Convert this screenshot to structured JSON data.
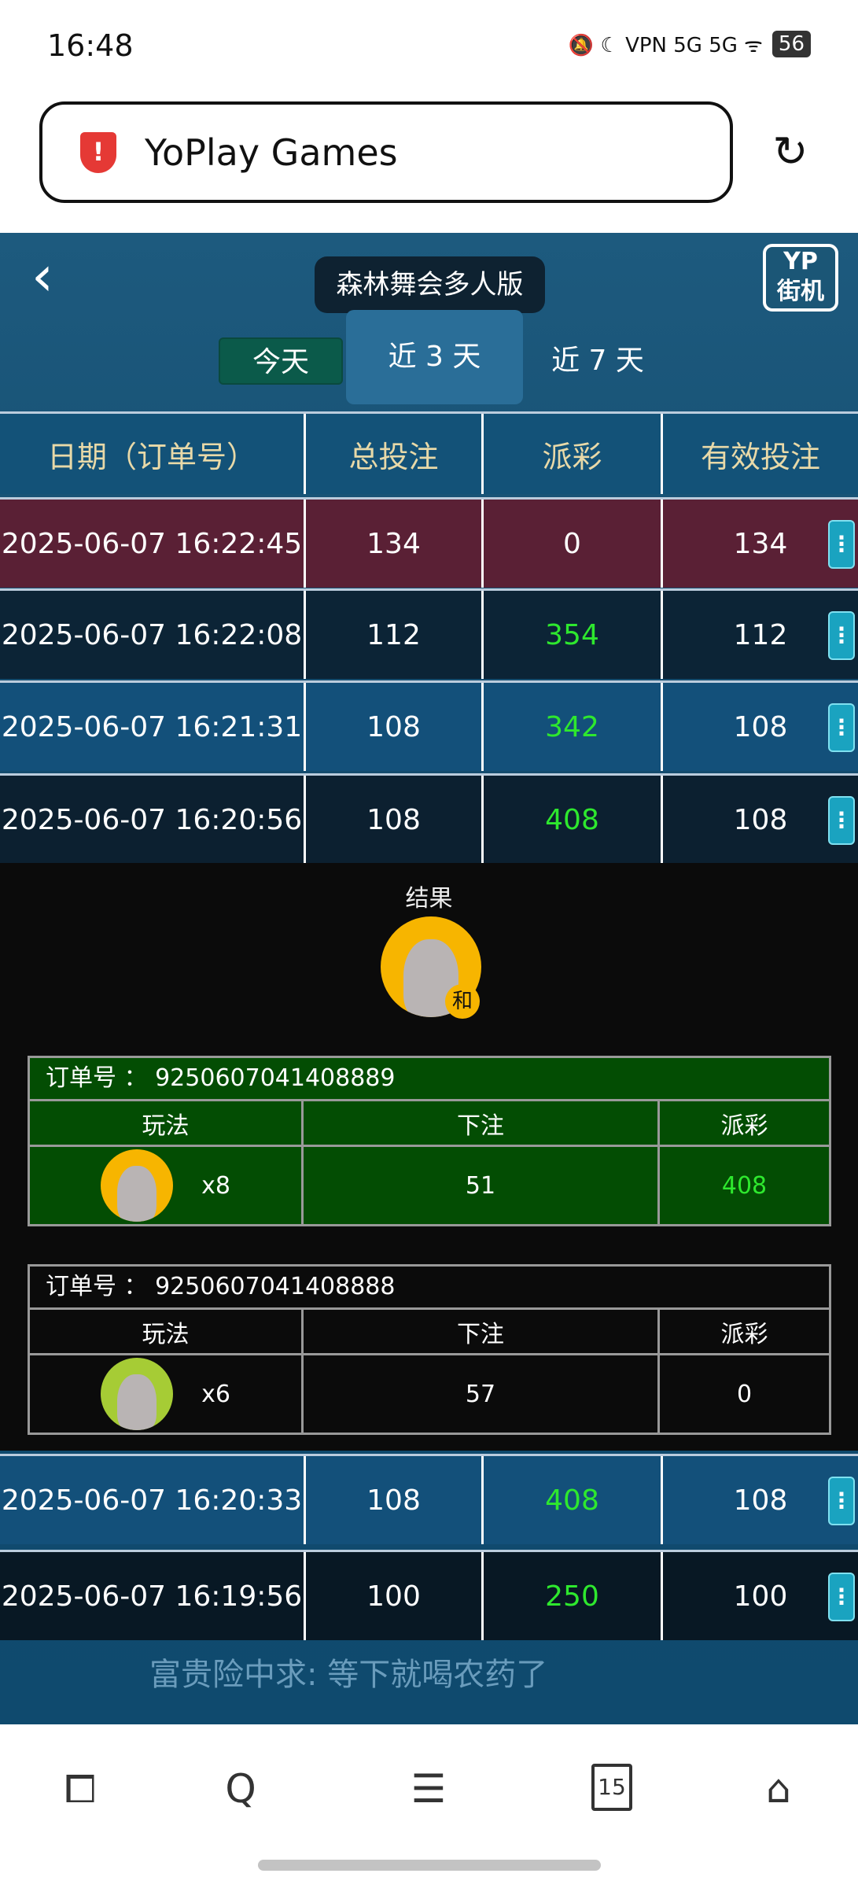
{
  "status_bar": {
    "time": "16:48",
    "indicators": "🔕 ☾ VPN 5G 5G ᯤ",
    "battery": "56"
  },
  "browser": {
    "title": "YoPlay Games",
    "shield_icon": "shield-alert-icon",
    "reload_icon": "reload-icon"
  },
  "game": {
    "title": "森林舞会多人版",
    "logo_top": "YP",
    "logo_bottom": "街机",
    "tabs": [
      {
        "label": "今天"
      },
      {
        "label": "近 3 天"
      },
      {
        "label": "近 7 天"
      }
    ],
    "columns": [
      "日期（订单号）",
      "总投注",
      "派彩",
      "有效投注"
    ],
    "rows": [
      {
        "date": "2025-06-07 16:22:45",
        "total": "134",
        "payout": "0",
        "valid": "134",
        "win": false
      },
      {
        "date": "2025-06-07 16:22:08",
        "total": "112",
        "payout": "354",
        "valid": "112",
        "win": true
      },
      {
        "date": "2025-06-07 16:21:31",
        "total": "108",
        "payout": "342",
        "valid": "108",
        "win": true
      },
      {
        "date": "2025-06-07 16:20:56",
        "total": "108",
        "payout": "408",
        "valid": "108",
        "win": true
      },
      {
        "date": "2025-06-07 16:20:33",
        "total": "108",
        "payout": "408",
        "valid": "108",
        "win": true
      },
      {
        "date": "2025-06-07 16:19:56",
        "total": "100",
        "payout": "250",
        "valid": "100",
        "win": true
      }
    ],
    "more_label": "⋮",
    "detail": {
      "result_label": "结果",
      "result_badge": "和",
      "orders": [
        {
          "order_label": "订单号  ：",
          "order_no": "9250607041408889",
          "headers": [
            "玩法",
            "下注",
            "派彩"
          ],
          "play": "x8",
          "bet": "51",
          "payout": "408",
          "avatar_color": "#f7b500",
          "bg": "#034d03"
        },
        {
          "order_label": "订单号  ：",
          "order_no": "9250607041408888",
          "headers": [
            "玩法",
            "下注",
            "派彩"
          ],
          "play": "x6",
          "bet": "57",
          "payout": "0",
          "avatar_color": "#a6cc35",
          "bg": "#0b0b0b"
        }
      ]
    },
    "chat": "富贵险中求: 等下就喝农药了"
  },
  "bottom_nav": {
    "tabs_count": "15"
  }
}
